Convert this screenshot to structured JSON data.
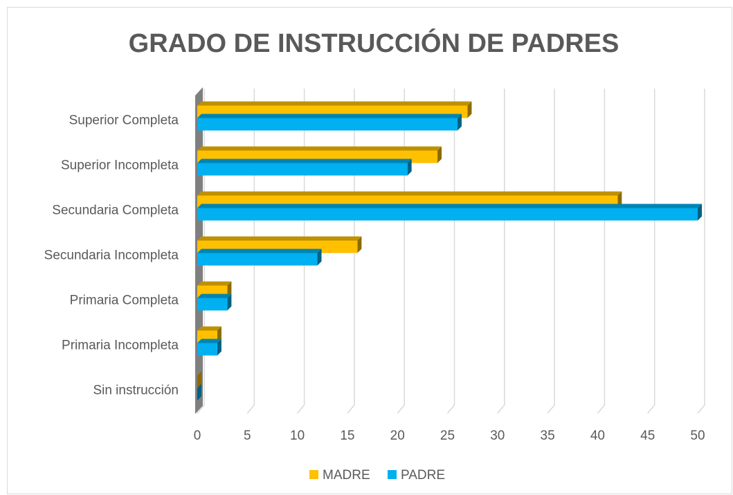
{
  "chart_data": {
    "type": "bar",
    "orientation": "horizontal",
    "title": "GRADO DE INSTRUCCIÓN DE PADRES",
    "categories": [
      "Superior Completa",
      "Superior Incompleta",
      "Secundaria Completa",
      "Secundaria Incompleta",
      "Primaria Completa",
      "Primaria Incompleta",
      "Sin instrucción"
    ],
    "series": [
      {
        "name": "MADRE",
        "color": "#FFC000",
        "values": [
          27,
          24,
          42,
          16,
          3,
          2,
          0
        ]
      },
      {
        "name": "PADRE",
        "color": "#00B0F0",
        "values": [
          26,
          21,
          50,
          12,
          3,
          2,
          0
        ]
      }
    ],
    "xlim": [
      0,
      50
    ],
    "xticks": [
      0,
      5,
      10,
      15,
      20,
      25,
      30,
      35,
      40,
      45,
      50
    ],
    "grid": true,
    "legend": "bottom"
  }
}
